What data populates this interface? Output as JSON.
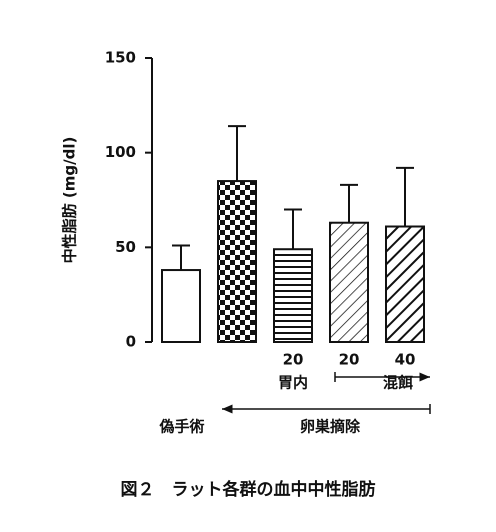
{
  "chart_data": {
    "type": "bar",
    "ylabel": "中性脂肪 (mg/dl)",
    "caption": "図２　ラット各群の血中中性脂肪",
    "categories": [
      null,
      null,
      "20",
      "20",
      "40"
    ],
    "series": [
      {
        "values": [
          38,
          85,
          49,
          63,
          61
        ],
        "errors": [
          13,
          29,
          21,
          20,
          31
        ],
        "color": "#111111",
        "patterns": [
          "none",
          "checker",
          "hlines",
          "diag-thin",
          "diag-thick"
        ]
      }
    ],
    "group_labels": [
      "胃内",
      "混餌",
      "偽手術",
      "卵巣摘除"
    ],
    "ylim": [
      0,
      150
    ],
    "yticks": [
      0,
      50,
      100,
      150
    ]
  }
}
